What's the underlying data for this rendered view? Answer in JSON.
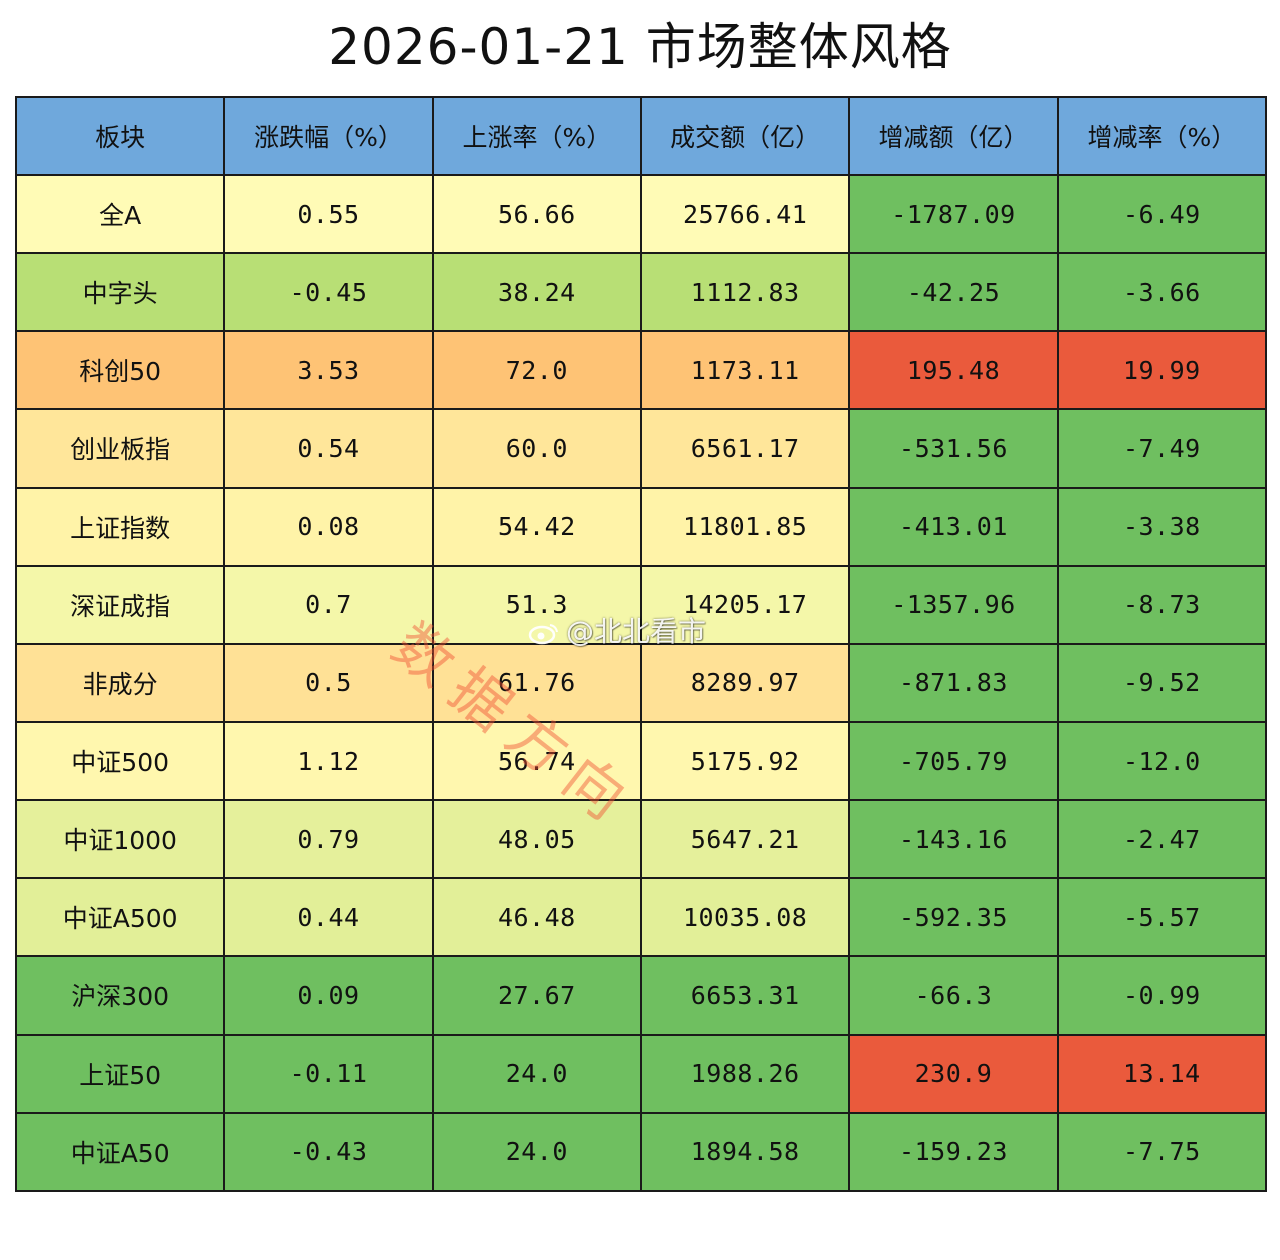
{
  "chart_data": {
    "type": "table",
    "title": "2026-01-21  市场整体风格",
    "columns": [
      "板块",
      "涨跌幅（%）",
      "上涨率（%）",
      "成交额（亿）",
      "增减额（亿）",
      "增减率（%）"
    ],
    "rows": [
      [
        "全A",
        "0.55",
        "56.66",
        "25766.41",
        "-1787.09",
        "-6.49"
      ],
      [
        "中字头",
        "-0.45",
        "38.24",
        "1112.83",
        "-42.25",
        "-3.66"
      ],
      [
        "科创50",
        "3.53",
        "72.0",
        "1173.11",
        "195.48",
        "19.99"
      ],
      [
        "创业板指",
        "0.54",
        "60.0",
        "6561.17",
        "-531.56",
        "-7.49"
      ],
      [
        "上证指数",
        "0.08",
        "54.42",
        "11801.85",
        "-413.01",
        "-3.38"
      ],
      [
        "深证成指",
        "0.7",
        "51.3",
        "14205.17",
        "-1357.96",
        "-8.73"
      ],
      [
        "非成分",
        "0.5",
        "61.76",
        "8289.97",
        "-871.83",
        "-9.52"
      ],
      [
        "中证500",
        "1.12",
        "56.74",
        "5175.92",
        "-705.79",
        "-12.0"
      ],
      [
        "中证1000",
        "0.79",
        "48.05",
        "5647.21",
        "-143.16",
        "-2.47"
      ],
      [
        "中证A500",
        "0.44",
        "46.48",
        "10035.08",
        "-592.35",
        "-5.57"
      ],
      [
        "沪深300",
        "0.09",
        "27.67",
        "6653.31",
        "-66.3",
        "-0.99"
      ],
      [
        "上证50",
        "-0.11",
        "24.0",
        "1988.26",
        "230.9",
        "13.14"
      ],
      [
        "中证A50",
        "-0.43",
        "24.0",
        "1894.58",
        "-159.23",
        "-7.75"
      ]
    ],
    "row_colors": [
      [
        "#fffbb6",
        "#fffbb6",
        "#fffbb6",
        "#fffbb6",
        "#6fbf60",
        "#6fbf60"
      ],
      [
        "#b8df75",
        "#b8df75",
        "#b8df75",
        "#b8df75",
        "#6fbf60",
        "#6fbf60"
      ],
      [
        "#fec375",
        "#fec375",
        "#fec375",
        "#fec375",
        "#ea5a3c",
        "#ea5a3c"
      ],
      [
        "#ffe69a",
        "#ffe69a",
        "#ffe69a",
        "#ffe69a",
        "#6fbf60",
        "#6fbf60"
      ],
      [
        "#fff3a8",
        "#fff3a8",
        "#fff3a8",
        "#fff3a8",
        "#6fbf60",
        "#6fbf60"
      ],
      [
        "#f4f7a9",
        "#f4f7a9",
        "#f4f7a9",
        "#f4f7a9",
        "#6fbf60",
        "#6fbf60"
      ],
      [
        "#ffe196",
        "#ffe196",
        "#ffe196",
        "#ffe196",
        "#6fbf60",
        "#6fbf60"
      ],
      [
        "#fff7ae",
        "#fff7ae",
        "#fff7ae",
        "#fff7ae",
        "#6fbf60",
        "#6fbf60"
      ],
      [
        "#e5f09b",
        "#e5f09b",
        "#e5f09b",
        "#e5f09b",
        "#6fbf60",
        "#6fbf60"
      ],
      [
        "#e2ef98",
        "#e2ef98",
        "#e2ef98",
        "#e2ef98",
        "#6fbf60",
        "#6fbf60"
      ],
      [
        "#6fbf60",
        "#6fbf60",
        "#6fbf60",
        "#6fbf60",
        "#6fbf60",
        "#6fbf60"
      ],
      [
        "#6fbf60",
        "#6fbf60",
        "#6fbf60",
        "#6fbf60",
        "#ea5a3c",
        "#ea5a3c"
      ],
      [
        "#6fbf60",
        "#6fbf60",
        "#6fbf60",
        "#6fbf60",
        "#6fbf60",
        "#6fbf60"
      ]
    ],
    "header_color": "#6fa8dc"
  },
  "watermark": {
    "text": "数据方向",
    "weibo_handle": "@北北看市"
  }
}
